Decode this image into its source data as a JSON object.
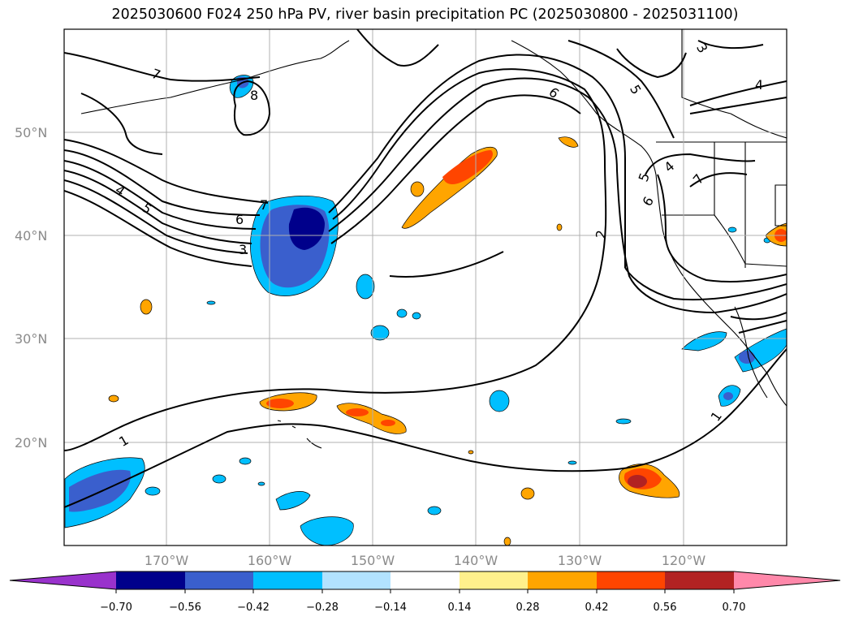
{
  "title": "2025030600 F024 250 hPa PV, river basin precipitation PC (2025030800 - 2025031100)",
  "map": {
    "lat_labels": [
      "50°N",
      "40°N",
      "30°N",
      "20°N"
    ],
    "lon_labels": [
      "170°W",
      "160°W",
      "150°W",
      "140°W",
      "130°W",
      "120°W"
    ],
    "contour_labels": [
      "7",
      "8",
      "7",
      "6",
      "5",
      "4",
      "3",
      "6",
      "5",
      "4",
      "3",
      "2",
      "6",
      "5",
      "4",
      "7",
      "1",
      "1"
    ]
  },
  "colorbar": {
    "colors": [
      "#9932cc",
      "#00008b",
      "#3a5fcd",
      "#00bfff",
      "#b2e2ff",
      "#ffffff",
      "#fff08c",
      "#ffa500",
      "#ff4500",
      "#b22222",
      "#ff88aa"
    ],
    "tick_labels": [
      "−0.70",
      "−0.56",
      "−0.42",
      "−0.28",
      "−0.14",
      "0.14",
      "0.28",
      "0.42",
      "0.56",
      "0.70"
    ]
  }
}
